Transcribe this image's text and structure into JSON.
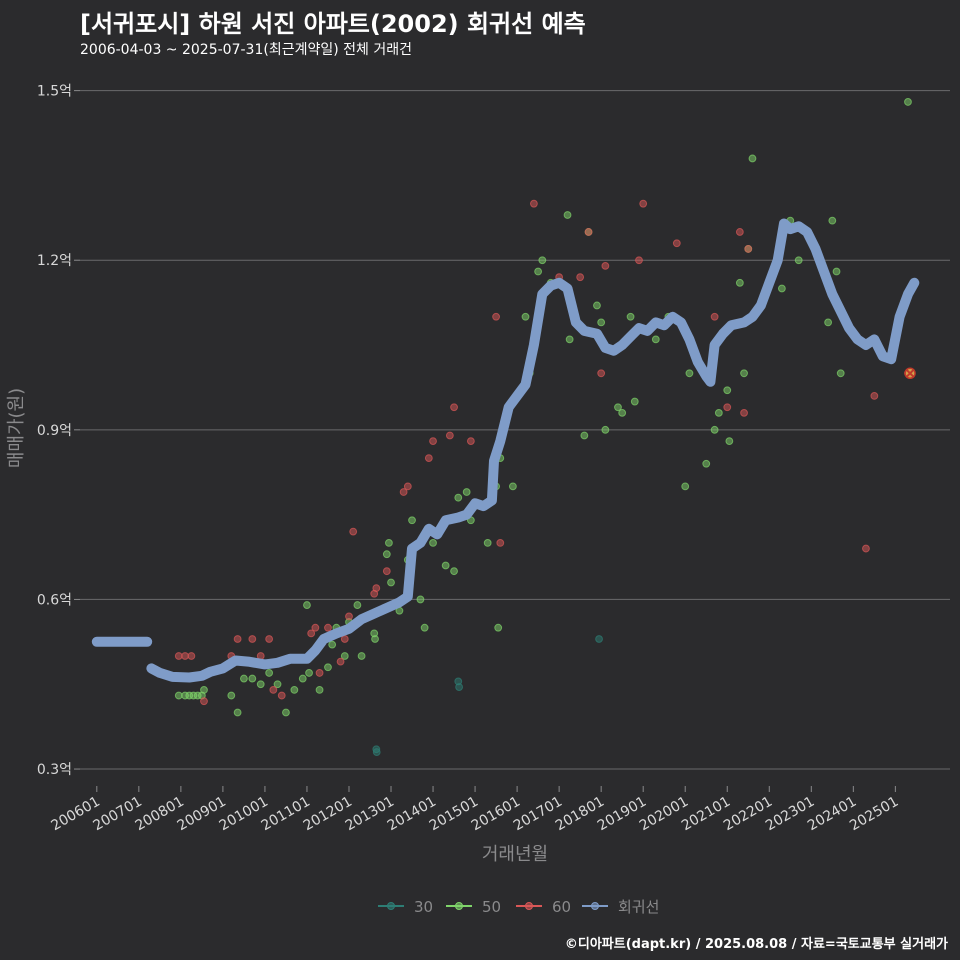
{
  "header": {
    "title": "[서귀포시] 하원 서진 아파트(2002) 회귀선 예측",
    "subtitle": "2006-04-03 ~ 2025-07-31(최근계약일) 전체 거래건"
  },
  "footer": {
    "credit": "©디아파트(dapt.kr) / 2025.08.08 / 자료=국토교통부 실거래가"
  },
  "colors": {
    "background": "#2b2b2d",
    "grid": "#6a6a6c",
    "series_30": "#2d7d74",
    "series_50": "#7fd46a",
    "series_60": "#d95757",
    "regression": "#7f9cc8",
    "forecast_marker": "#c0392b"
  },
  "chart_data": {
    "type": "scatter",
    "title": "[서귀포시] 하원 서진 아파트(2002) 회귀선 예측",
    "xlabel": "거래년월",
    "ylabel": "매매가(원)",
    "xlim": [
      2005.6,
      2026.3
    ],
    "ylim": [
      0.27,
      1.54
    ],
    "y_ticks": [
      {
        "value": 0.3,
        "label": "0.3억"
      },
      {
        "value": 0.6,
        "label": "0.6억"
      },
      {
        "value": 0.9,
        "label": "0.9억"
      },
      {
        "value": 1.2,
        "label": "1.2억"
      },
      {
        "value": 1.5,
        "label": "1.5억"
      }
    ],
    "x_ticks": [
      {
        "value": 2006.0,
        "label": "200601"
      },
      {
        "value": 2007.0,
        "label": "200701"
      },
      {
        "value": 2008.0,
        "label": "200801"
      },
      {
        "value": 2009.0,
        "label": "200901"
      },
      {
        "value": 2010.0,
        "label": "201001"
      },
      {
        "value": 2011.0,
        "label": "201101"
      },
      {
        "value": 2012.0,
        "label": "201201"
      },
      {
        "value": 2013.0,
        "label": "201301"
      },
      {
        "value": 2014.0,
        "label": "201401"
      },
      {
        "value": 2015.0,
        "label": "201501"
      },
      {
        "value": 2016.0,
        "label": "201601"
      },
      {
        "value": 2017.0,
        "label": "201701"
      },
      {
        "value": 2018.0,
        "label": "201801"
      },
      {
        "value": 2019.0,
        "label": "201901"
      },
      {
        "value": 2020.0,
        "label": "202001"
      },
      {
        "value": 2021.0,
        "label": "202101"
      },
      {
        "value": 2022.0,
        "label": "202201"
      },
      {
        "value": 2023.0,
        "label": "202301"
      },
      {
        "value": 2024.0,
        "label": "202401"
      },
      {
        "value": 2025.0,
        "label": "202501"
      }
    ],
    "legend": {
      "position": "bottom",
      "items": [
        {
          "key": "s30",
          "label": "30"
        },
        {
          "key": "s50",
          "label": "50"
        },
        {
          "key": "s60",
          "label": "60"
        },
        {
          "key": "reg",
          "label": "회귀선"
        }
      ]
    },
    "series": [
      {
        "name": "30",
        "key": "s30",
        "points": [
          [
            2012.65,
            0.335
          ],
          [
            2012.66,
            0.33
          ],
          [
            2014.6,
            0.455
          ],
          [
            2014.62,
            0.445
          ],
          [
            2017.95,
            0.53
          ]
        ]
      },
      {
        "name": "50",
        "key": "s50",
        "points": [
          [
            2007.95,
            0.43
          ],
          [
            2008.1,
            0.43
          ],
          [
            2008.2,
            0.43
          ],
          [
            2008.3,
            0.43
          ],
          [
            2008.4,
            0.43
          ],
          [
            2008.5,
            0.43
          ],
          [
            2008.55,
            0.44
          ],
          [
            2009.2,
            0.43
          ],
          [
            2009.35,
            0.4
          ],
          [
            2009.5,
            0.46
          ],
          [
            2009.7,
            0.46
          ],
          [
            2009.9,
            0.45
          ],
          [
            2010.1,
            0.47
          ],
          [
            2010.3,
            0.45
          ],
          [
            2010.5,
            0.4
          ],
          [
            2010.7,
            0.44
          ],
          [
            2010.9,
            0.46
          ],
          [
            2011.0,
            0.59
          ],
          [
            2011.05,
            0.47
          ],
          [
            2011.3,
            0.44
          ],
          [
            2011.5,
            0.48
          ],
          [
            2011.6,
            0.52
          ],
          [
            2011.7,
            0.55
          ],
          [
            2011.9,
            0.5
          ],
          [
            2012.0,
            0.56
          ],
          [
            2012.2,
            0.59
          ],
          [
            2012.3,
            0.5
          ],
          [
            2012.6,
            0.54
          ],
          [
            2012.62,
            0.53
          ],
          [
            2012.9,
            0.68
          ],
          [
            2012.95,
            0.7
          ],
          [
            2013.0,
            0.63
          ],
          [
            2013.2,
            0.58
          ],
          [
            2013.4,
            0.67
          ],
          [
            2013.5,
            0.74
          ],
          [
            2013.7,
            0.6
          ],
          [
            2013.8,
            0.55
          ],
          [
            2014.0,
            0.7
          ],
          [
            2014.3,
            0.66
          ],
          [
            2014.5,
            0.65
          ],
          [
            2014.6,
            0.78
          ],
          [
            2014.8,
            0.79
          ],
          [
            2014.9,
            0.74
          ],
          [
            2015.3,
            0.7
          ],
          [
            2015.5,
            0.8
          ],
          [
            2015.6,
            0.85
          ],
          [
            2015.55,
            0.55
          ],
          [
            2015.9,
            0.8
          ],
          [
            2016.2,
            1.1
          ],
          [
            2016.3,
            1.0
          ],
          [
            2016.5,
            1.18
          ],
          [
            2016.6,
            1.2
          ],
          [
            2016.8,
            1.16
          ],
          [
            2017.2,
            1.28
          ],
          [
            2017.25,
            1.06
          ],
          [
            2017.6,
            0.89
          ],
          [
            2017.7,
            1.25
          ],
          [
            2017.9,
            1.12
          ],
          [
            2018.0,
            1.09
          ],
          [
            2018.1,
            0.9
          ],
          [
            2018.4,
            0.94
          ],
          [
            2018.5,
            0.93
          ],
          [
            2018.7,
            1.1
          ],
          [
            2018.8,
            0.95
          ],
          [
            2019.3,
            1.06
          ],
          [
            2019.6,
            1.1
          ],
          [
            2020.0,
            0.8
          ],
          [
            2020.1,
            1.0
          ],
          [
            2020.5,
            0.84
          ],
          [
            2020.7,
            0.9
          ],
          [
            2020.8,
            0.93
          ],
          [
            2021.0,
            0.97
          ],
          [
            2021.05,
            0.88
          ],
          [
            2021.3,
            1.16
          ],
          [
            2021.4,
            1.0
          ],
          [
            2021.6,
            1.38
          ],
          [
            2021.5,
            1.22
          ],
          [
            2022.3,
            1.15
          ],
          [
            2022.5,
            1.27
          ],
          [
            2022.7,
            1.2
          ],
          [
            2023.4,
            1.09
          ],
          [
            2023.5,
            1.27
          ],
          [
            2023.6,
            1.18
          ],
          [
            2023.7,
            1.0
          ],
          [
            2025.3,
            1.48
          ]
        ]
      },
      {
        "name": "60",
        "key": "s60",
        "points": [
          [
            2007.95,
            0.5
          ],
          [
            2008.1,
            0.5
          ],
          [
            2008.25,
            0.5
          ],
          [
            2008.55,
            0.42
          ],
          [
            2009.2,
            0.5
          ],
          [
            2009.35,
            0.53
          ],
          [
            2009.7,
            0.53
          ],
          [
            2009.9,
            0.5
          ],
          [
            2010.1,
            0.53
          ],
          [
            2010.2,
            0.44
          ],
          [
            2010.4,
            0.43
          ],
          [
            2011.1,
            0.54
          ],
          [
            2011.2,
            0.55
          ],
          [
            2011.3,
            0.47
          ],
          [
            2011.5,
            0.55
          ],
          [
            2011.8,
            0.49
          ],
          [
            2011.9,
            0.53
          ],
          [
            2012.0,
            0.57
          ],
          [
            2012.1,
            0.72
          ],
          [
            2012.6,
            0.61
          ],
          [
            2012.65,
            0.62
          ],
          [
            2012.9,
            0.65
          ],
          [
            2013.3,
            0.79
          ],
          [
            2013.4,
            0.8
          ],
          [
            2013.9,
            0.85
          ],
          [
            2014.0,
            0.88
          ],
          [
            2014.4,
            0.89
          ],
          [
            2014.5,
            0.94
          ],
          [
            2014.9,
            0.88
          ],
          [
            2015.5,
            1.1
          ],
          [
            2015.6,
            0.7
          ],
          [
            2016.4,
            1.3
          ],
          [
            2017.0,
            1.17
          ],
          [
            2017.5,
            1.17
          ],
          [
            2017.7,
            1.25
          ],
          [
            2018.0,
            1.0
          ],
          [
            2018.1,
            1.19
          ],
          [
            2018.9,
            1.2
          ],
          [
            2019.0,
            1.3
          ],
          [
            2019.8,
            1.23
          ],
          [
            2020.7,
            1.1
          ],
          [
            2021.0,
            0.94
          ],
          [
            2021.3,
            1.25
          ],
          [
            2021.5,
            1.22
          ],
          [
            2021.4,
            0.93
          ],
          [
            2024.3,
            0.69
          ],
          [
            2024.5,
            0.96
          ],
          [
            2025.3,
            1.0
          ]
        ]
      },
      {
        "name": "회귀선",
        "key": "reg",
        "points": [
          [
            2006.0,
            0.525
          ],
          [
            2007.2,
            0.525
          ],
          [
            null,
            null
          ],
          [
            2007.3,
            0.478
          ],
          [
            2007.5,
            0.47
          ],
          [
            2007.8,
            0.463
          ],
          [
            2008.2,
            0.462
          ],
          [
            2008.5,
            0.465
          ],
          [
            2008.7,
            0.472
          ],
          [
            2009.0,
            0.478
          ],
          [
            2009.3,
            0.492
          ],
          [
            2009.6,
            0.49
          ],
          [
            2010.0,
            0.485
          ],
          [
            2010.3,
            0.488
          ],
          [
            2010.6,
            0.495
          ],
          [
            2011.0,
            0.495
          ],
          [
            2011.2,
            0.51
          ],
          [
            2011.4,
            0.53
          ],
          [
            2011.7,
            0.54
          ],
          [
            2012.0,
            0.548
          ],
          [
            2012.3,
            0.565
          ],
          [
            2012.6,
            0.575
          ],
          [
            2012.9,
            0.585
          ],
          [
            2013.2,
            0.595
          ],
          [
            2013.4,
            0.605
          ],
          [
            2013.5,
            0.69
          ],
          [
            2013.7,
            0.7
          ],
          [
            2013.9,
            0.725
          ],
          [
            2014.1,
            0.715
          ],
          [
            2014.3,
            0.74
          ],
          [
            2014.6,
            0.745
          ],
          [
            2014.8,
            0.75
          ],
          [
            2015.0,
            0.77
          ],
          [
            2015.2,
            0.765
          ],
          [
            2015.4,
            0.775
          ],
          [
            2015.45,
            0.845
          ],
          [
            2015.6,
            0.88
          ],
          [
            2015.8,
            0.94
          ],
          [
            2016.0,
            0.96
          ],
          [
            2016.2,
            0.98
          ],
          [
            2016.4,
            1.05
          ],
          [
            2016.6,
            1.14
          ],
          [
            2016.8,
            1.155
          ],
          [
            2017.0,
            1.16
          ],
          [
            2017.2,
            1.15
          ],
          [
            2017.4,
            1.09
          ],
          [
            2017.6,
            1.075
          ],
          [
            2017.9,
            1.07
          ],
          [
            2018.1,
            1.045
          ],
          [
            2018.3,
            1.04
          ],
          [
            2018.5,
            1.05
          ],
          [
            2018.7,
            1.065
          ],
          [
            2018.9,
            1.08
          ],
          [
            2019.1,
            1.075
          ],
          [
            2019.3,
            1.09
          ],
          [
            2019.5,
            1.085
          ],
          [
            2019.7,
            1.1
          ],
          [
            2019.9,
            1.09
          ],
          [
            2020.1,
            1.06
          ],
          [
            2020.3,
            1.02
          ],
          [
            2020.5,
            0.995
          ],
          [
            2020.6,
            0.985
          ],
          [
            2020.7,
            1.05
          ],
          [
            2020.9,
            1.07
          ],
          [
            2021.1,
            1.085
          ],
          [
            2021.4,
            1.09
          ],
          [
            2021.6,
            1.1
          ],
          [
            2021.8,
            1.12
          ],
          [
            2022.0,
            1.16
          ],
          [
            2022.2,
            1.2
          ],
          [
            2022.35,
            1.265
          ],
          [
            2022.5,
            1.255
          ],
          [
            2022.7,
            1.26
          ],
          [
            2022.9,
            1.25
          ],
          [
            2023.1,
            1.22
          ],
          [
            2023.3,
            1.18
          ],
          [
            2023.5,
            1.14
          ],
          [
            2023.7,
            1.11
          ],
          [
            2023.9,
            1.08
          ],
          [
            2024.1,
            1.06
          ],
          [
            2024.3,
            1.05
          ],
          [
            2024.5,
            1.06
          ],
          [
            2024.7,
            1.03
          ],
          [
            2024.9,
            1.025
          ],
          [
            2025.1,
            1.1
          ],
          [
            2025.3,
            1.14
          ],
          [
            2025.45,
            1.16
          ]
        ]
      }
    ],
    "forecast_point": [
      2025.35,
      1.0
    ]
  }
}
